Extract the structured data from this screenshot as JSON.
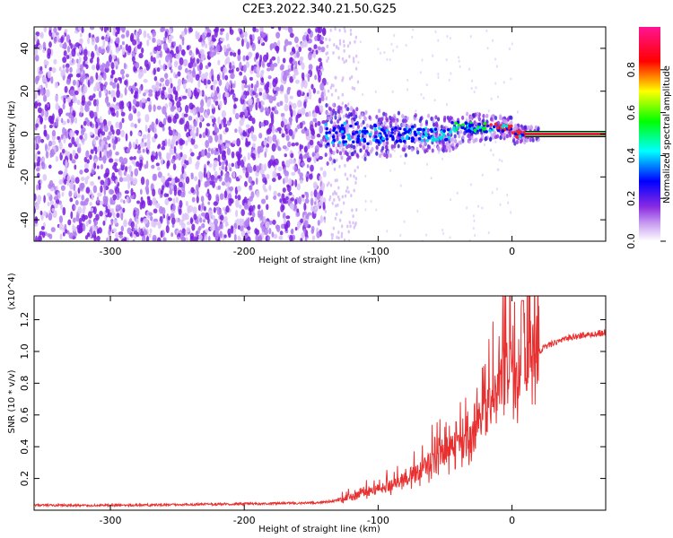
{
  "page_title": "C2E3.2022.340.21.50.G25",
  "colors": {
    "snr_line": "#e83030",
    "spectrogram_low": "#8a2be2",
    "axis": "#000000"
  },
  "chart_data": [
    {
      "type": "heatmap",
      "title": "C2E3.2022.340.21.50.G25",
      "xlabel": "Height of straight line (km)",
      "ylabel": "Frequency (Hz)",
      "xlim": [
        -357,
        70
      ],
      "ylim": [
        -50,
        50
      ],
      "x_ticks": [
        -300,
        -200,
        -100,
        0
      ],
      "y_ticks": [
        40,
        20,
        0,
        -20,
        -40
      ],
      "colorbar": {
        "label": "Normalized spectral amplitude",
        "range": [
          0.0,
          1.0
        ],
        "ticks": [
          0.0,
          0.2,
          0.4,
          0.6,
          0.8
        ],
        "colormap": [
          "#ffffff",
          "#8a2be2",
          "#0000ff",
          "#00ffff",
          "#00ff00",
          "#ffff00",
          "#ff0000",
          "#ff1493"
        ]
      },
      "features": {
        "noise_region_x": [
          -357,
          -140
        ],
        "sparse_region_x": [
          -140,
          -115
        ],
        "signal_onset_x": -140,
        "carrier_line_start_x": 10,
        "carrier_frequency_hz": 0
      }
    },
    {
      "type": "line",
      "xlabel": "Height of straight line (km)",
      "ylabel": "SNR (10 * v/v)",
      "y_multiplier_label": "(x10^4)",
      "xlim": [
        -357,
        70
      ],
      "ylim": [
        0.0,
        1.35
      ],
      "x_ticks": [
        -300,
        -200,
        -100,
        0
      ],
      "y_ticks": [
        0.2,
        0.4,
        0.6,
        0.8,
        1.0,
        1.2
      ],
      "series": [
        {
          "x": [
            -357,
            -300,
            -250,
            -200,
            -150,
            -130,
            -120,
            -110,
            -100,
            -90,
            -80,
            -70,
            -60,
            -50,
            -40,
            -30,
            -20,
            -15,
            -10,
            -5,
            0,
            5,
            8,
            10,
            15,
            20,
            25,
            30,
            40,
            50,
            60,
            70
          ],
          "y": [
            0.03,
            0.03,
            0.035,
            0.04,
            0.045,
            0.06,
            0.08,
            0.1,
            0.12,
            0.14,
            0.18,
            0.22,
            0.28,
            0.34,
            0.38,
            0.4,
            0.55,
            0.65,
            0.72,
            0.78,
            0.8,
            0.6,
            1.3,
            0.85,
            0.95,
            1.0,
            1.03,
            1.05,
            1.08,
            1.1,
            1.11,
            1.12
          ]
        }
      ]
    }
  ]
}
